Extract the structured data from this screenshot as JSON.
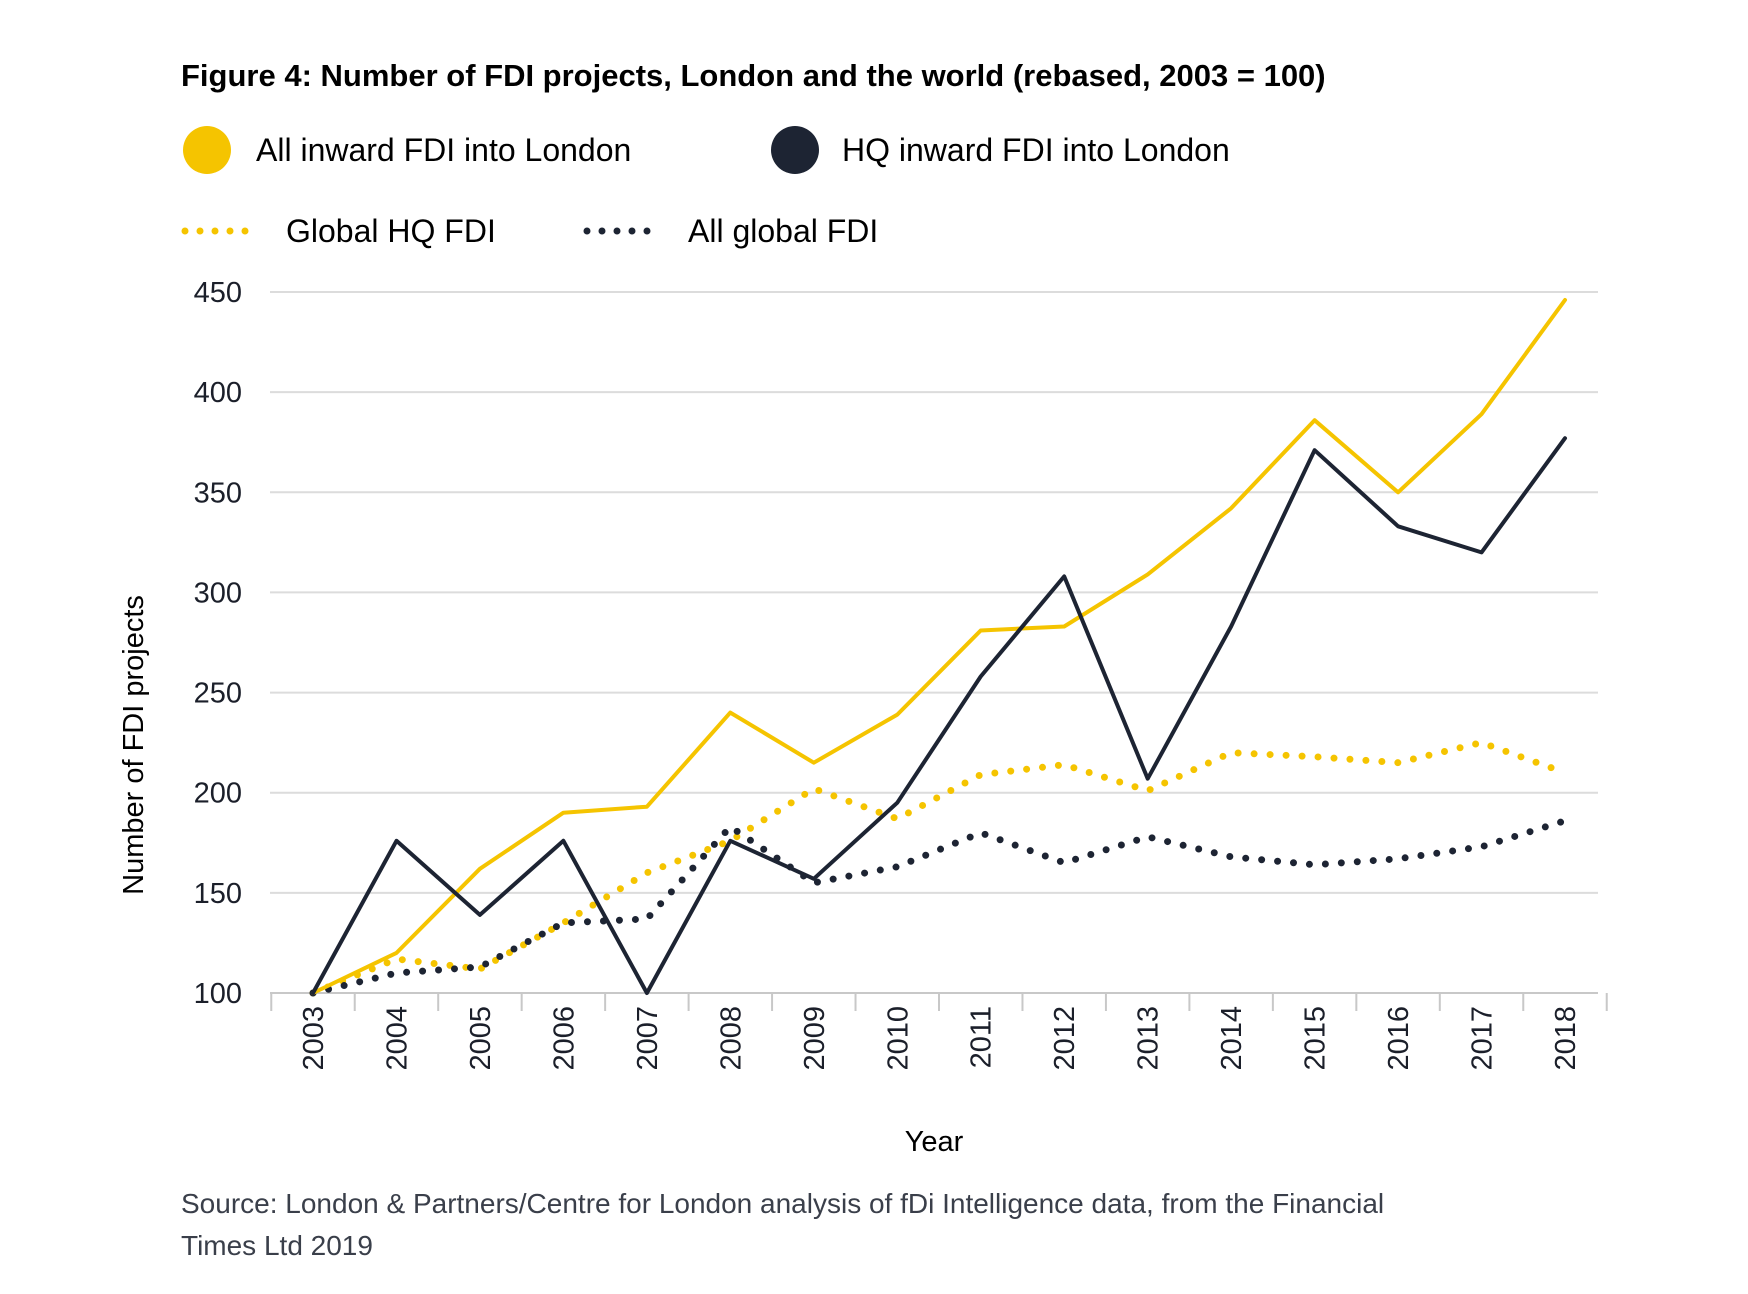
{
  "chart_data": {
    "type": "line",
    "title": "Figure 4: Number of FDI projects, London and the world (rebased, 2003 = 100)",
    "xlabel": "Year",
    "ylabel": "Number of FDI projects",
    "ylim": [
      100,
      450
    ],
    "yticks": [
      100,
      150,
      200,
      250,
      300,
      350,
      400,
      450
    ],
    "grid": true,
    "categories": [
      "2003",
      "2004",
      "2005",
      "2006",
      "2007",
      "2008",
      "2009",
      "2010",
      "2011",
      "2012",
      "2013",
      "2014",
      "2015",
      "2016",
      "2017",
      "2018"
    ],
    "series": [
      {
        "name": "All inward FDI into London",
        "style": "solid",
        "color": "#F5C400",
        "values": [
          100,
          120,
          162,
          190,
          193,
          240,
          215,
          239,
          281,
          283,
          309,
          342,
          386,
          350,
          389,
          446
        ]
      },
      {
        "name": "HQ inward FDI into London",
        "style": "solid",
        "color": "#1D2433",
        "values": [
          100,
          176,
          139,
          176,
          100,
          176,
          157,
          195,
          258,
          308,
          207,
          283,
          371,
          333,
          320,
          377
        ]
      },
      {
        "name": "Global HQ FDI",
        "style": "dotted",
        "color": "#F5C400",
        "values": [
          100,
          117,
          112,
          135,
          160,
          176,
          202,
          187,
          209,
          214,
          201,
          220,
          218,
          215,
          225,
          210
        ]
      },
      {
        "name": "All global FDI",
        "style": "dotted",
        "color": "#1D2433",
        "values": [
          100,
          110,
          113,
          135,
          137,
          183,
          155,
          163,
          180,
          165,
          178,
          168,
          164,
          167,
          173,
          186
        ]
      }
    ],
    "source": "Source: London & Partners/Centre for London analysis of fDi Intelligence data, from the Financial Times Ltd 2019"
  },
  "legend": [
    {
      "label": "All inward FDI into London",
      "marker": "circle",
      "color": "#F5C400"
    },
    {
      "label": "HQ inward FDI into London",
      "marker": "circle",
      "color": "#1D2433"
    },
    {
      "label": "Global HQ FDI",
      "marker": "dotted-line",
      "color": "#F5C400"
    },
    {
      "label": "All global FDI",
      "marker": "dotted-line",
      "color": "#1D2433"
    }
  ],
  "source_lines": [
    "Source: London & Partners/Centre for London analysis of fDi Intelligence data, from the Financial",
    "Times Ltd 2019"
  ]
}
